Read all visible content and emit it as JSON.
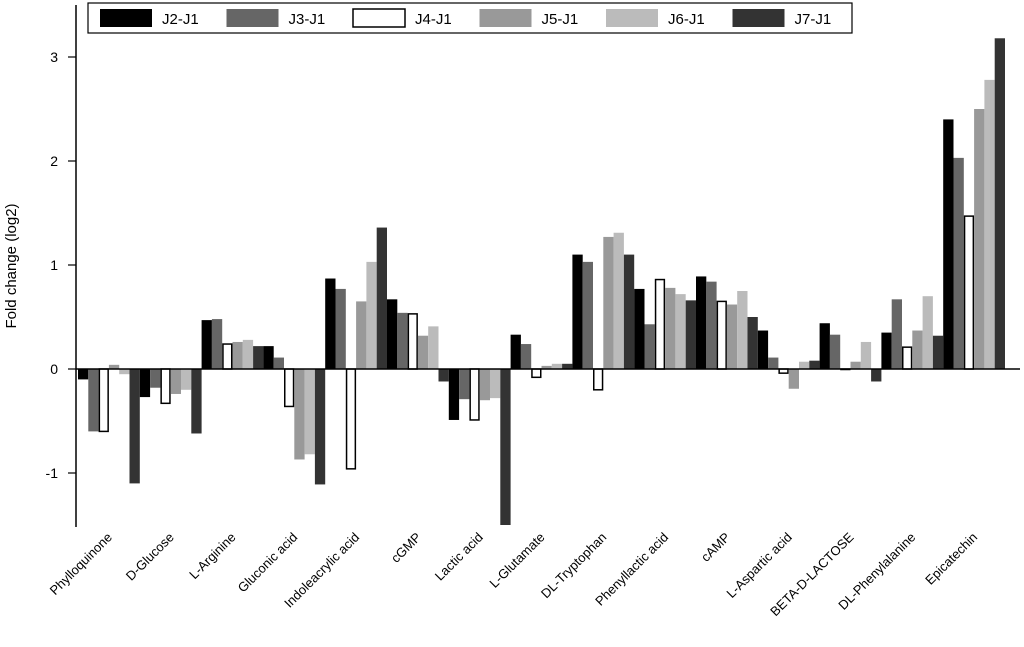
{
  "chart_data": {
    "type": "bar",
    "title": "",
    "xlabel": "",
    "ylabel": "Fold change (log2)",
    "ylim": [
      -1.5,
      3.5
    ],
    "yticks": [
      -1,
      0,
      1,
      2,
      3
    ],
    "grid": false,
    "legend_placement": "top",
    "categories": [
      "Phylloquinone",
      "D-Glucose",
      "L-Arginine",
      "Gluconic acid",
      "Indoleacrylic acid",
      "cGMP",
      "Lactic acid",
      "L-Glutamate",
      "DL-Tryptophan",
      "Phenyllactic acid",
      "cAMP",
      "L-Aspartic acid",
      "BETA-D-LACTOSE",
      "DL-Phenylalanine",
      "Epicatechin"
    ],
    "series": [
      {
        "name": "J2-J1",
        "color": "#000000",
        "values": [
          -0.1,
          -0.27,
          0.47,
          0.22,
          0.87,
          0.67,
          -0.49,
          0.33,
          1.1,
          0.77,
          0.89,
          0.37,
          0.44,
          0.35,
          2.4
        ]
      },
      {
        "name": "J3-J1",
        "color": "#666666",
        "values": [
          -0.6,
          -0.18,
          0.48,
          0.11,
          0.77,
          0.54,
          -0.29,
          0.24,
          1.03,
          0.43,
          0.84,
          0.11,
          0.33,
          0.67,
          2.03
        ]
      },
      {
        "name": "J4-J1",
        "color": "#ffffff",
        "values": [
          -0.6,
          -0.33,
          0.24,
          -0.36,
          -0.96,
          0.53,
          -0.49,
          -0.08,
          -0.2,
          0.86,
          0.65,
          -0.04,
          0.0,
          0.21,
          1.47
        ]
      },
      {
        "name": "J5-J1",
        "color": "#999999",
        "values": [
          0.04,
          -0.24,
          0.26,
          -0.87,
          0.65,
          0.32,
          -0.3,
          0.03,
          1.27,
          0.78,
          0.62,
          -0.19,
          0.07,
          0.37,
          2.5
        ]
      },
      {
        "name": "J6-J1",
        "color": "#bbbbbb",
        "values": [
          -0.05,
          -0.2,
          0.28,
          -0.82,
          1.03,
          0.41,
          -0.28,
          0.05,
          1.31,
          0.72,
          0.75,
          0.07,
          0.26,
          0.7,
          2.78
        ]
      },
      {
        "name": "J7-J1",
        "color": "#333333",
        "values": [
          -1.1,
          -0.62,
          0.22,
          -1.11,
          1.36,
          -0.12,
          -1.5,
          0.05,
          1.1,
          0.66,
          0.5,
          0.08,
          -0.12,
          0.32,
          3.18
        ]
      }
    ]
  }
}
